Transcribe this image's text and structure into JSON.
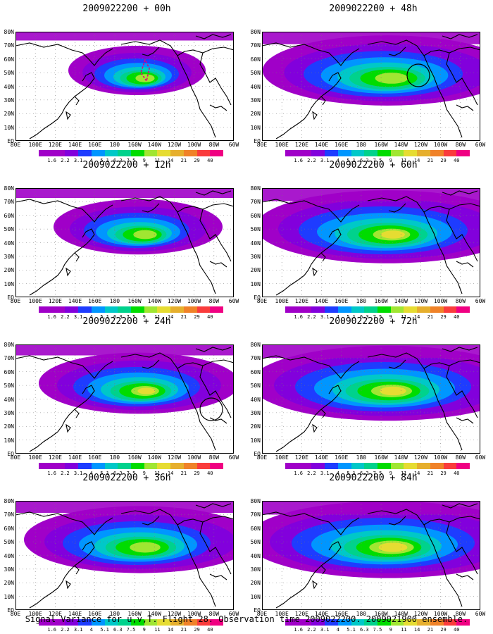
{
  "palette": {
    "ocean": "#ffffff",
    "contour_colors": [
      "#a000c8",
      "#8200dc",
      "#1e3cff",
      "#0096ff",
      "#00c8c8",
      "#00d28c",
      "#00dc00",
      "#a0e632",
      "#e6dc32",
      "#e6af2d",
      "#f08228",
      "#fa3c3c",
      "#f00082"
    ],
    "contour_levels": [
      "1.6",
      "2.2",
      "3.1",
      "4",
      "5.1",
      "6.3",
      "7.5",
      "9",
      "11",
      "14",
      "21",
      "29",
      "40"
    ]
  },
  "axes": {
    "lat_labels": [
      "80N",
      "70N",
      "60N",
      "50N",
      "40N",
      "30N",
      "20N",
      "10N",
      "EQ"
    ],
    "lon_labels": [
      "80E",
      "100E",
      "120E",
      "140E",
      "160E",
      "180",
      "160W",
      "140W",
      "120W",
      "100W",
      "80W",
      "60W"
    ]
  },
  "panels": [
    {
      "id": "p00",
      "title": "2009022200 + 00h",
      "intensity": 0.6,
      "spread": 0.25,
      "circle": false,
      "dashed_track": true
    },
    {
      "id": "p12",
      "title": "2009022200 + 12h",
      "intensity": 0.7,
      "spread": 0.4,
      "circle": false,
      "dashed_track": false
    },
    {
      "id": "p24",
      "title": "2009022200 + 24h",
      "intensity": 0.75,
      "spread": 0.55,
      "circle": true,
      "dashed_track": false
    },
    {
      "id": "p36",
      "title": "2009022200 + 36h",
      "intensity": 0.7,
      "spread": 0.7,
      "circle": false,
      "dashed_track": false
    },
    {
      "id": "p48",
      "title": "2009022200 + 48h",
      "intensity": 0.72,
      "spread": 0.78,
      "circle": true,
      "dashed_track": false
    },
    {
      "id": "p60",
      "title": "2009022200 + 60h",
      "intensity": 0.8,
      "spread": 0.85,
      "circle": false,
      "dashed_track": false
    },
    {
      "id": "p72",
      "title": "2009022200 + 72h",
      "intensity": 0.88,
      "spread": 0.9,
      "circle": false,
      "dashed_track": false
    },
    {
      "id": "p84",
      "title": "2009022200 + 84h",
      "intensity": 0.95,
      "spread": 0.95,
      "circle": false,
      "dashed_track": false
    }
  ],
  "caption": "Signal Variance for u,v,T. Flight 28. Observation time 2009022200. 2009021900 ensemble."
}
